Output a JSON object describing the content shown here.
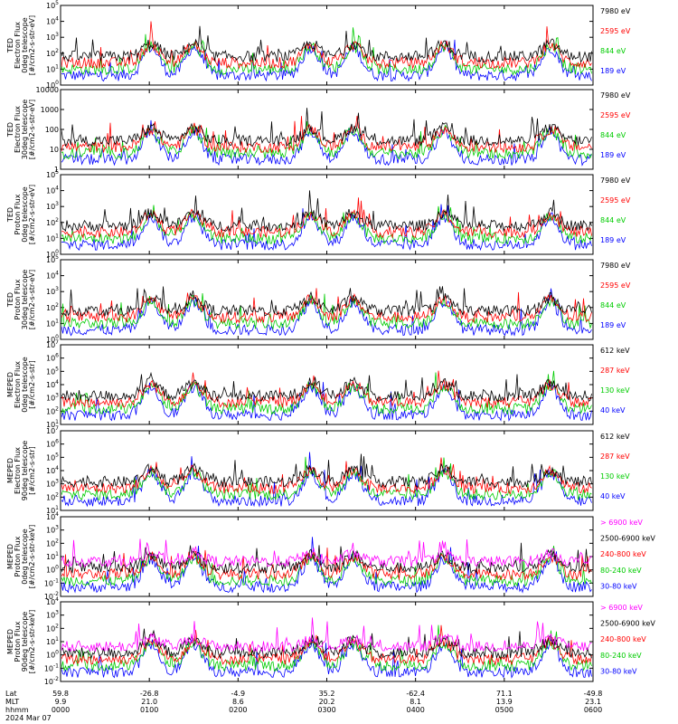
{
  "chart_data": [
    {
      "type": "line",
      "ylabel_lines": [
        "TED",
        "Electron Flux",
        "0deg telescope",
        "[#/cm2-s-str-eV]"
      ],
      "yticks": [
        "10^0",
        "10^1",
        "10^2",
        "10^3",
        "10^4",
        "10^5"
      ],
      "ylim": [
        1,
        100000
      ],
      "yscale": "log",
      "legend": [
        {
          "label": "7980 eV",
          "color": "#000000"
        },
        {
          "label": "2595 eV",
          "color": "#ff0000"
        },
        {
          "label": "844 eV",
          "color": "#00cc00"
        },
        {
          "label": "189 eV",
          "color": "#0000ff"
        }
      ]
    },
    {
      "type": "line",
      "ylabel_lines": [
        "TED",
        "Electron Flux",
        "30deg telescope",
        "[#/cm2-s-str-eV]"
      ],
      "yticks": [
        "1",
        "10",
        "100",
        "1000",
        "10000"
      ],
      "ylim": [
        1,
        10000
      ],
      "yscale": "log",
      "legend": [
        {
          "label": "7980 eV",
          "color": "#000000"
        },
        {
          "label": "2595 eV",
          "color": "#ff0000"
        },
        {
          "label": "844 eV",
          "color": "#00cc00"
        },
        {
          "label": "189 eV",
          "color": "#0000ff"
        }
      ]
    },
    {
      "type": "line",
      "ylabel_lines": [
        "TED",
        "Proton Flux",
        "0deg telescope",
        "[#/cm2-s-str-eV]"
      ],
      "yticks": [
        "10^0",
        "10^1",
        "10^2",
        "10^3",
        "10^4",
        "10^5"
      ],
      "ylim": [
        1,
        100000
      ],
      "yscale": "log",
      "legend": [
        {
          "label": "7980 eV",
          "color": "#000000"
        },
        {
          "label": "2595 eV",
          "color": "#ff0000"
        },
        {
          "label": "844 eV",
          "color": "#00cc00"
        },
        {
          "label": "189 eV",
          "color": "#0000ff"
        }
      ]
    },
    {
      "type": "line",
      "ylabel_lines": [
        "TED",
        "Proton Flux",
        "30deg telescope",
        "[#/cm2-s-str-eV]"
      ],
      "yticks": [
        "10^0",
        "10^1",
        "10^2",
        "10^3",
        "10^4",
        "10^5"
      ],
      "ylim": [
        1,
        100000
      ],
      "yscale": "log",
      "legend": [
        {
          "label": "7980 eV",
          "color": "#000000"
        },
        {
          "label": "2595 eV",
          "color": "#ff0000"
        },
        {
          "label": "844 eV",
          "color": "#00cc00"
        },
        {
          "label": "189 eV",
          "color": "#0000ff"
        }
      ]
    },
    {
      "type": "line",
      "ylabel_lines": [
        "MEPED",
        "Electron Flux",
        "0deg telescope",
        "[#/cm2-s-str]"
      ],
      "yticks": [
        "10^1",
        "10^2",
        "10^3",
        "10^4",
        "10^5",
        "10^6",
        "10^7"
      ],
      "ylim": [
        10,
        10000000
      ],
      "yscale": "log",
      "legend": [
        {
          "label": "612 keV",
          "color": "#000000"
        },
        {
          "label": "287 keV",
          "color": "#ff0000"
        },
        {
          "label": "130 keV",
          "color": "#00cc00"
        },
        {
          "label": "40 keV",
          "color": "#0000ff"
        }
      ]
    },
    {
      "type": "line",
      "ylabel_lines": [
        "MEPED",
        "Electron Flux",
        "90deg telescope",
        "[#/cm2-s-str]"
      ],
      "yticks": [
        "10^1",
        "10^2",
        "10^3",
        "10^4",
        "10^5",
        "10^6",
        "10^7"
      ],
      "ylim": [
        10,
        10000000
      ],
      "yscale": "log",
      "legend": [
        {
          "label": "612 keV",
          "color": "#000000"
        },
        {
          "label": "287 keV",
          "color": "#ff0000"
        },
        {
          "label": "130 keV",
          "color": "#00cc00"
        },
        {
          "label": "40 keV",
          "color": "#0000ff"
        }
      ]
    },
    {
      "type": "line",
      "ylabel_lines": [
        "MEPED",
        "Proton Flux",
        "0deg telescope",
        "[#/cm2-s-str-keV]"
      ],
      "yticks": [
        "10^-2",
        "10^-1",
        "10^0",
        "10^1",
        "10^2",
        "10^3",
        "10^4"
      ],
      "ylim": [
        0.01,
        10000
      ],
      "yscale": "log",
      "legend": [
        {
          "label": "> 6900 keV",
          "color": "#ff00ff"
        },
        {
          "label": "2500-6900 keV",
          "color": "#000000"
        },
        {
          "label": "240-800 keV",
          "color": "#ff0000"
        },
        {
          "label": "80-240 keV",
          "color": "#00cc00"
        },
        {
          "label": "30-80 keV",
          "color": "#0000ff"
        }
      ]
    },
    {
      "type": "line",
      "ylabel_lines": [
        "MEPED",
        "Proton Flux",
        "90deg telescope",
        "[#/cm2-s-str-keV]"
      ],
      "yticks": [
        "10^-2",
        "10^-1",
        "10^0",
        "10^1",
        "10^2",
        "10^3",
        "10^4"
      ],
      "ylim": [
        0.01,
        10000
      ],
      "yscale": "log",
      "legend": [
        {
          "label": "> 6900 keV",
          "color": "#ff00ff"
        },
        {
          "label": "2500-6900 keV",
          "color": "#000000"
        },
        {
          "label": "240-800 keV",
          "color": "#ff0000"
        },
        {
          "label": "80-240 keV",
          "color": "#00cc00"
        },
        {
          "label": "30-80 keV",
          "color": "#0000ff"
        }
      ]
    }
  ],
  "x_axis": {
    "row_labels": [
      "Lat",
      "MLT",
      "hhmm"
    ],
    "date": "2024 Mar 07",
    "ticks": [
      {
        "lat": "59.8",
        "mlt": "9.9",
        "hhmm": "0000"
      },
      {
        "lat": "-26.8",
        "mlt": "21.0",
        "hhmm": "0100"
      },
      {
        "lat": "-4.9",
        "mlt": "8.6",
        "hhmm": "0200"
      },
      {
        "lat": "35.2",
        "mlt": "20.2",
        "hhmm": "0300"
      },
      {
        "lat": "-62.4",
        "mlt": "8.1",
        "hhmm": "0400"
      },
      {
        "lat": "71.1",
        "mlt": "13.9",
        "hhmm": "0500"
      },
      {
        "lat": "-49.8",
        "mlt": "23.1",
        "hhmm": "0600"
      }
    ]
  }
}
